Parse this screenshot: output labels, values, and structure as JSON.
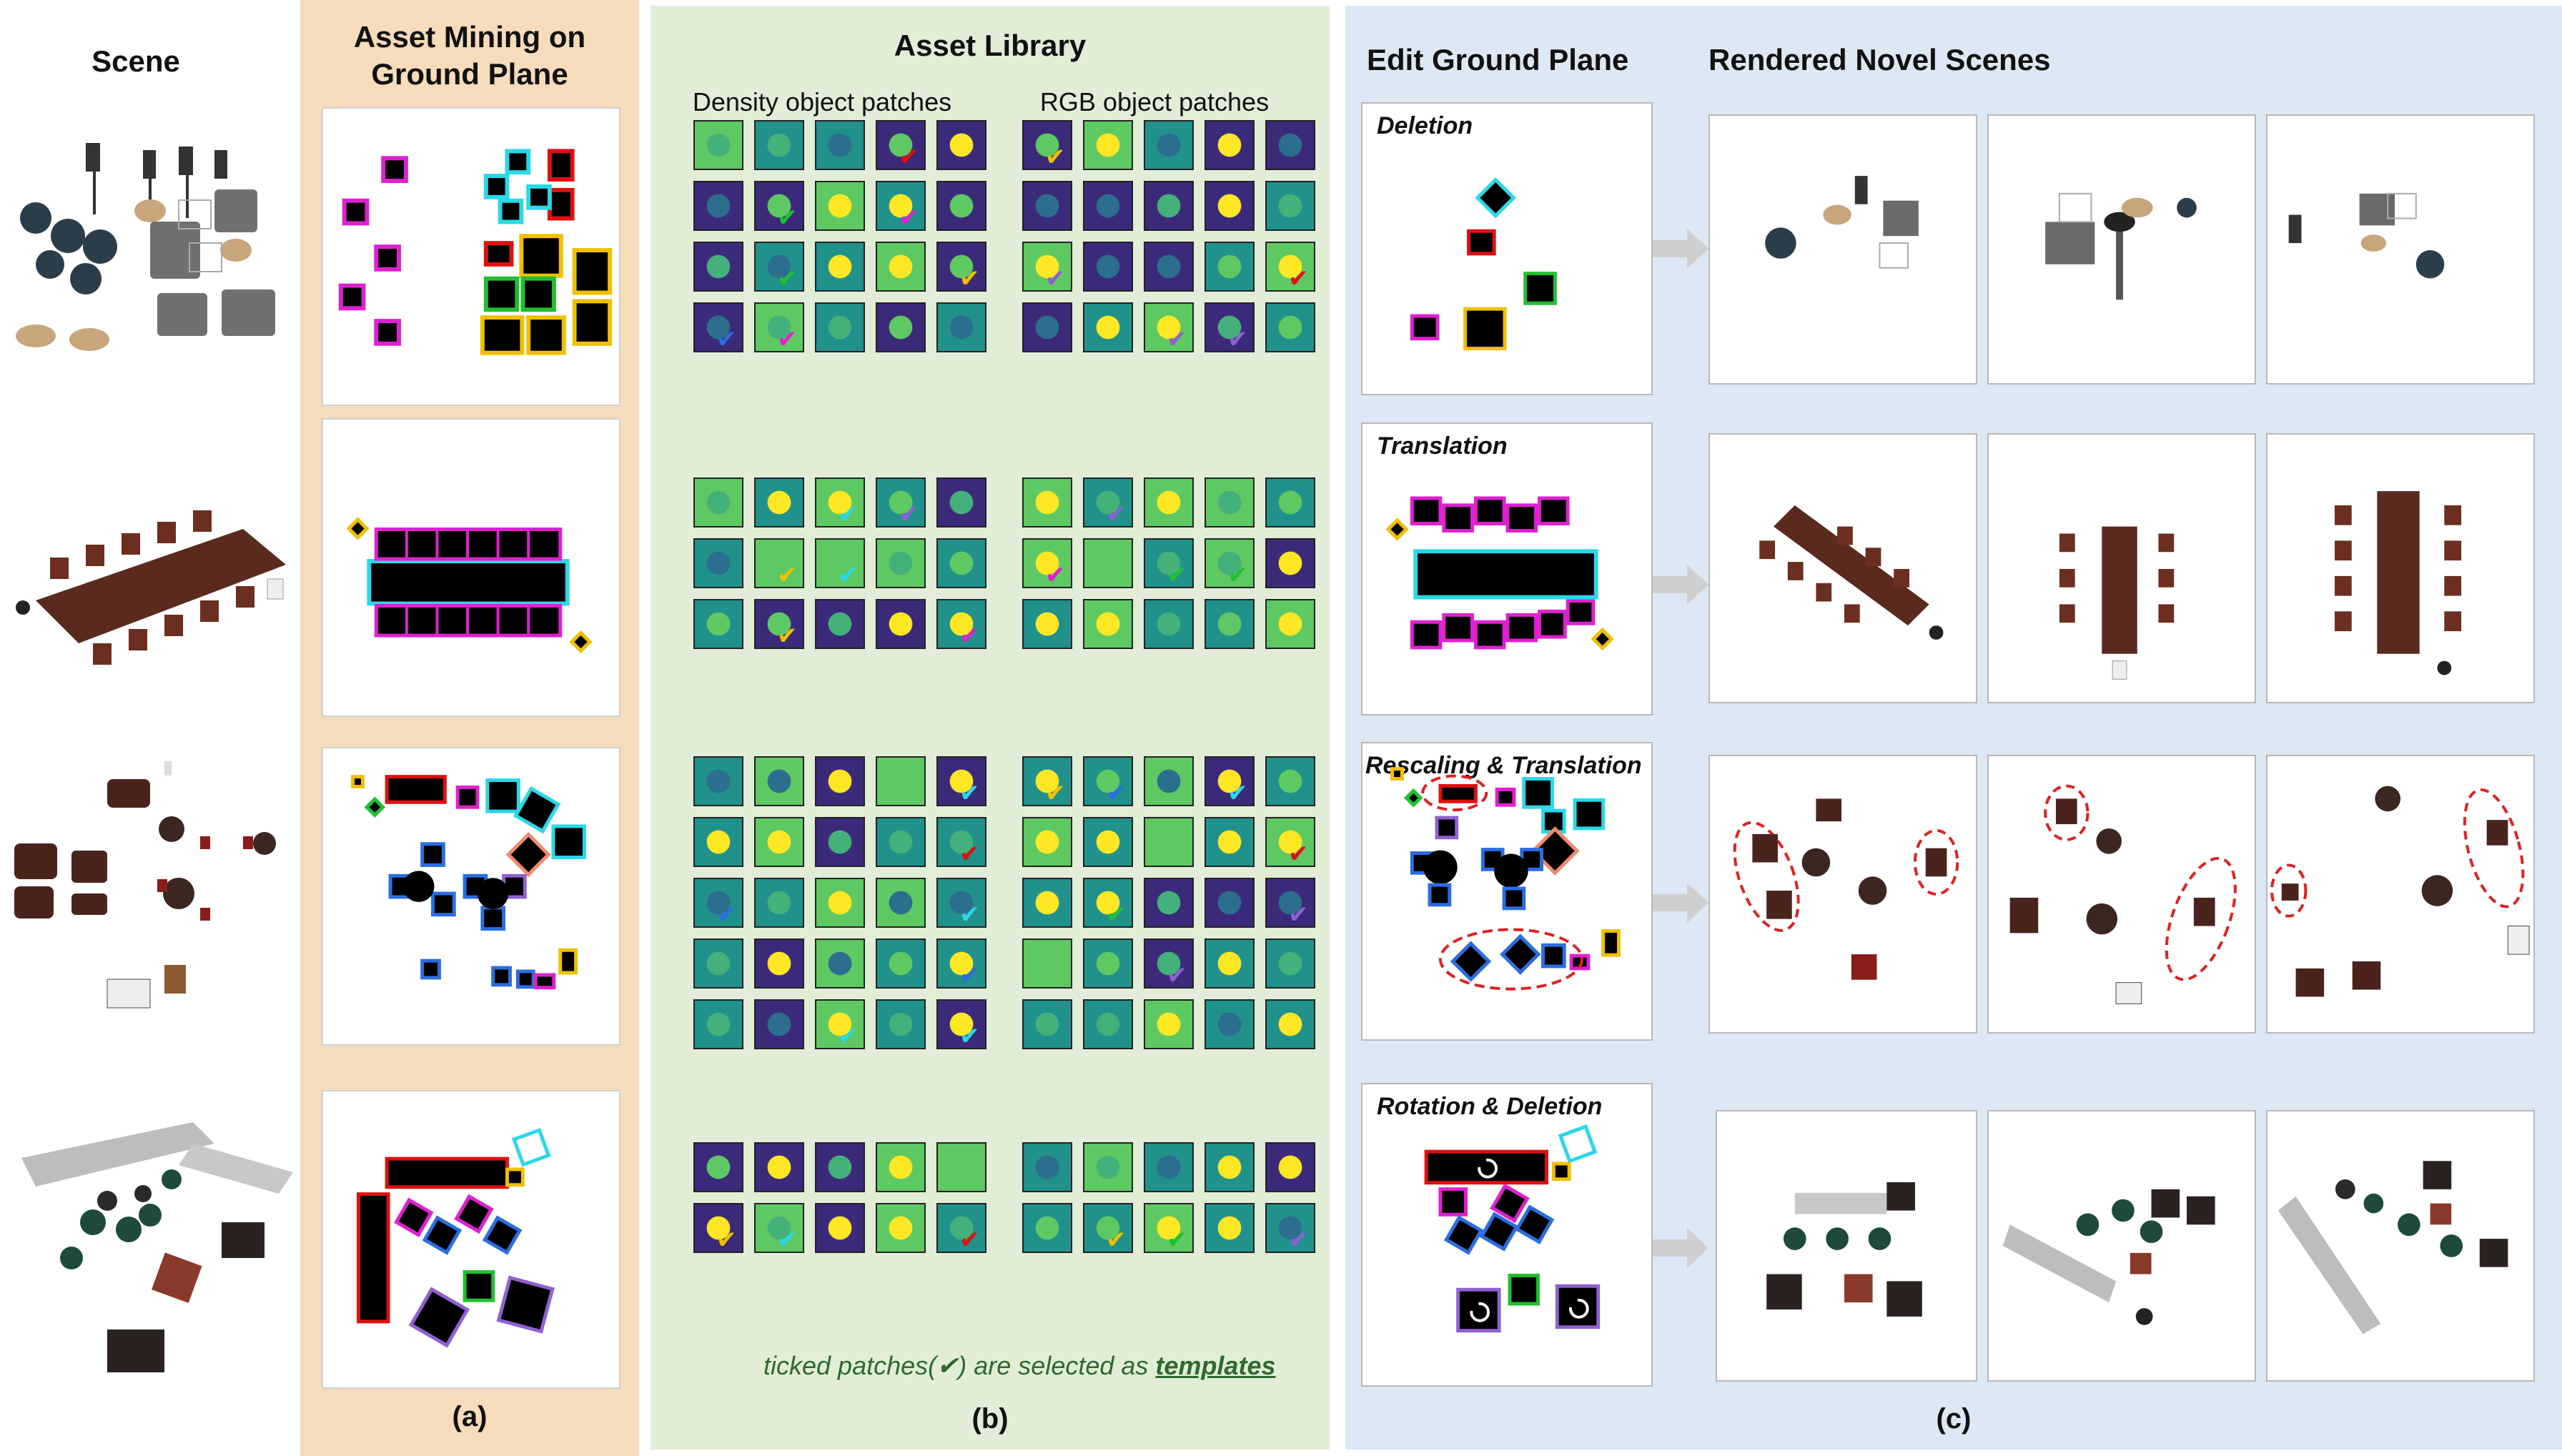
{
  "headers": {
    "scene": "Scene",
    "asset_mining_line1": "Asset Mining on",
    "asset_mining_line2": "Ground Plane",
    "asset_library": "Asset Library",
    "density_patches": "Density object patches",
    "rgb_patches": "RGB object patches",
    "edit_ground_plane": "Edit Ground Plane",
    "rendered_novel_scenes": "Rendered Novel Scenes"
  },
  "edit_labels": [
    "Deletion",
    "Translation",
    "Rescaling & Translation",
    "Rotation & Deletion"
  ],
  "note": {
    "prefix": "ticked patches(✔) are selected as ",
    "emphasis": "templates"
  },
  "captions": {
    "a": "(a)",
    "b": "(b)",
    "c": "(c)"
  },
  "colors": {
    "panel_a": "#f6dcba",
    "panel_b": "#e2edd8",
    "panel_c": "#dce8f4",
    "magenta": "#e020d0",
    "cyan": "#2ad8e8",
    "red": "#e01010",
    "yellow": "#f0c000",
    "green": "#20c030",
    "blue": "#2a6ee0",
    "purple": "#9060d0",
    "salmon": "#f08a70",
    "viridis_dark": "#3b2a7a",
    "viridis_teal": "#21918c",
    "viridis_green": "#5ec962",
    "viridis_yellow": "#fde725",
    "dashed_ellipse": "#e02020"
  }
}
